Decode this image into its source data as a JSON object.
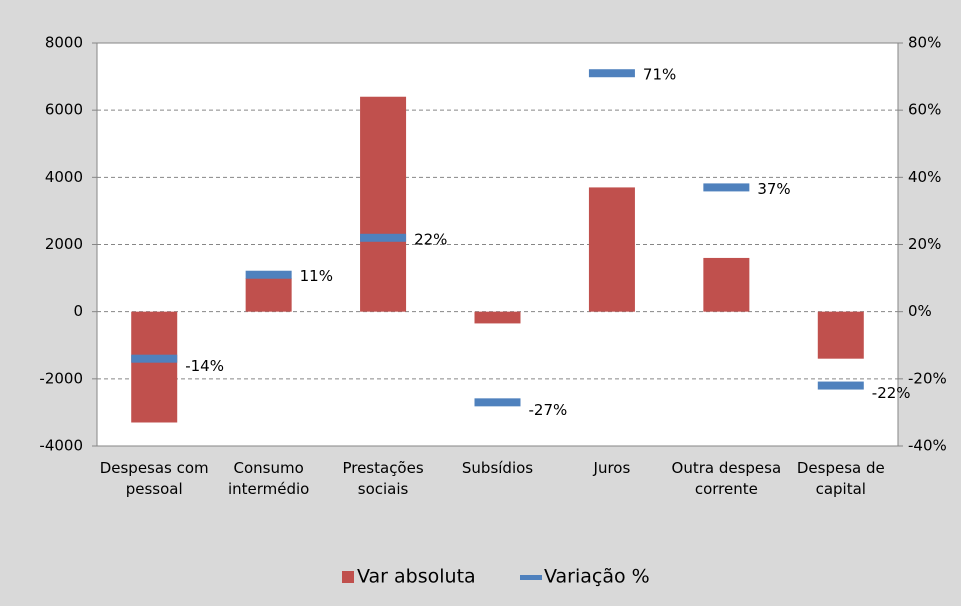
{
  "chart_data": {
    "type": "bar",
    "categories": [
      "Despesas com pessoal",
      "Consumo intermédio",
      "Prestações sociais",
      "Subsídios",
      "Juros",
      "Outra despesa corrente",
      "Despesa de capital"
    ],
    "series": [
      {
        "name": "Var absoluta",
        "color": "#c0504d",
        "values": [
          -3300,
          1000,
          6400,
          -350,
          3700,
          1600,
          -1400
        ]
      },
      {
        "name": "Variação %",
        "color": "#4f81bd",
        "axis": "y2",
        "values": [
          -14,
          11,
          22,
          -27,
          71,
          37,
          -22
        ],
        "value_labels": [
          "-14%",
          "11%",
          "22%",
          "-27%",
          "71%",
          "37%",
          "-22%"
        ]
      }
    ],
    "ylim": [
      -4000,
      8000
    ],
    "yticks": [
      -4000,
      -2000,
      0,
      2000,
      4000,
      6000,
      8000
    ],
    "y2lim": [
      -40,
      80
    ],
    "y2ticks": [
      {
        "value": -40,
        "label": "-40%"
      },
      {
        "value": -20,
        "label": "-20%"
      },
      {
        "value": 0,
        "label": "0%"
      },
      {
        "value": 20,
        "label": "20%"
      },
      {
        "value": 40,
        "label": "40%"
      },
      {
        "value": 60,
        "label": "60%"
      },
      {
        "value": 80,
        "label": "80%"
      }
    ],
    "grid": true,
    "legend": "bottom"
  }
}
